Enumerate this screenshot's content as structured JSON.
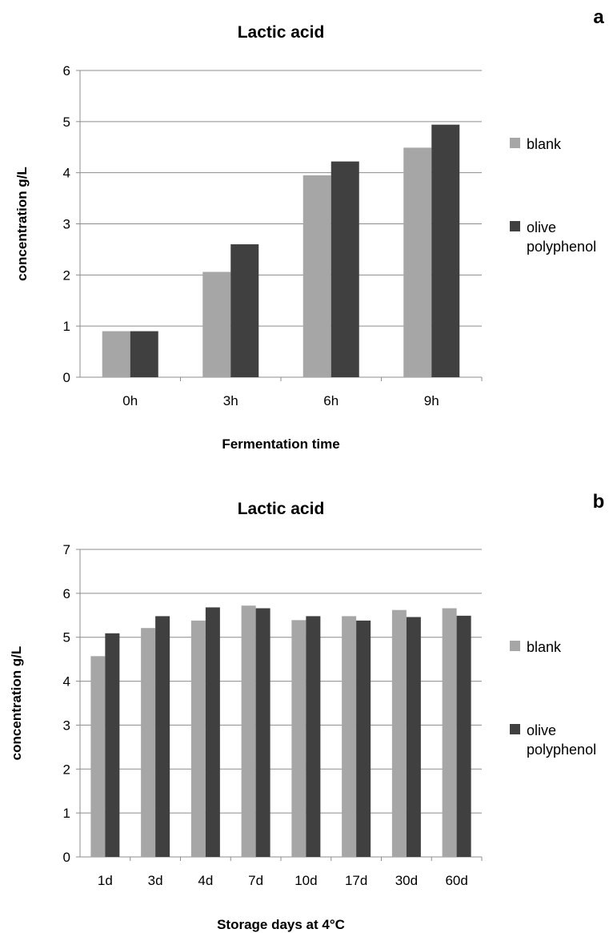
{
  "chart_data": [
    {
      "panel_label": "a",
      "type": "bar",
      "title": "Lactic acid",
      "xlabel": "Fermentation time",
      "ylabel": "concentration g/L",
      "ylim": [
        0,
        6
      ],
      "yticks": [
        0,
        1,
        2,
        3,
        4,
        5,
        6
      ],
      "grid": true,
      "legend_position": "right",
      "categories": [
        "0h",
        "3h",
        "6h",
        "9h"
      ],
      "series": [
        {
          "name": "blank",
          "color": "#a6a6a6",
          "values": [
            0.9,
            2.06,
            3.95,
            4.49
          ]
        },
        {
          "name": "olive polyphenol",
          "color": "#404040",
          "values": [
            0.9,
            2.6,
            4.22,
            4.94
          ]
        }
      ]
    },
    {
      "panel_label": "b",
      "type": "bar",
      "title": "Lactic acid",
      "xlabel": "Storage days at 4°C",
      "ylabel": "concentration g/L",
      "ylim": [
        0,
        7
      ],
      "yticks": [
        0,
        1,
        2,
        3,
        4,
        5,
        6,
        7
      ],
      "grid": true,
      "legend_position": "right",
      "categories": [
        "1d",
        "3d",
        "4d",
        "7d",
        "10d",
        "17d",
        "30d",
        "60d"
      ],
      "series": [
        {
          "name": "blank",
          "color": "#a6a6a6",
          "values": [
            4.57,
            5.21,
            5.38,
            5.72,
            5.39,
            5.48,
            5.62,
            5.66
          ]
        },
        {
          "name": "olive polyphenol",
          "color": "#404040",
          "values": [
            5.09,
            5.48,
            5.68,
            5.66,
            5.48,
            5.38,
            5.46,
            5.49
          ]
        }
      ]
    }
  ]
}
